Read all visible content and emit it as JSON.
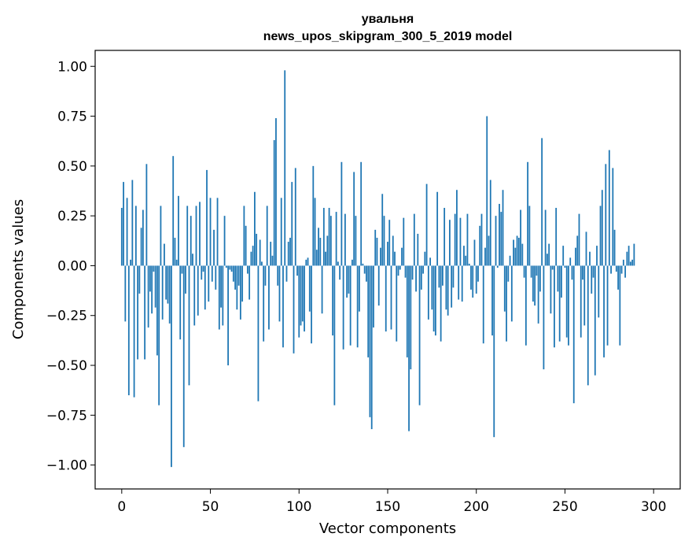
{
  "chart_data": {
    "type": "bar",
    "title_line1": "увальня",
    "title_line2": "news_upos_skipgram_300_5_2019 model",
    "xlabel": "Vector components",
    "ylabel": "Components values",
    "xlim": [
      -15,
      315
    ],
    "ylim": [
      -1.12,
      1.08
    ],
    "xticks": [
      0,
      50,
      100,
      150,
      200,
      250,
      300
    ],
    "xtick_labels": [
      "0",
      "50",
      "100",
      "150",
      "200",
      "250",
      "300"
    ],
    "yticks": [
      1.0,
      0.75,
      0.5,
      0.25,
      0.0,
      -0.25,
      -0.5,
      -0.75,
      -1.0
    ],
    "ytick_labels": [
      "1.00",
      "0.75",
      "0.50",
      "0.25",
      "0.00",
      "−0.25",
      "−0.50",
      "−0.75",
      "−1.00"
    ],
    "bar_color": "#1f77b4",
    "grid": false,
    "legend": "none",
    "x": "0..299 (component index)",
    "values": [
      0.29,
      0.42,
      -0.28,
      0.34,
      -0.65,
      0.03,
      0.43,
      -0.66,
      0.3,
      -0.47,
      -0.14,
      0.19,
      0.28,
      -0.47,
      0.51,
      -0.31,
      -0.13,
      -0.24,
      -0.03,
      -0.21,
      -0.45,
      -0.7,
      0.3,
      -0.27,
      0.11,
      -0.17,
      -0.19,
      -0.29,
      -1.01,
      0.55,
      0.14,
      0.03,
      0.35,
      -0.37,
      -0.04,
      -0.91,
      -0.14,
      0.3,
      -0.6,
      0.25,
      0.06,
      -0.3,
      0.3,
      -0.25,
      0.32,
      -0.07,
      -0.03,
      -0.22,
      0.48,
      -0.18,
      0.34,
      -0.08,
      0.18,
      -0.12,
      0.34,
      -0.32,
      -0.21,
      -0.3,
      0.25,
      -0.01,
      -0.5,
      -0.02,
      -0.03,
      -0.08,
      -0.12,
      -0.22,
      -0.1,
      -0.27,
      -0.18,
      0.3,
      0.2,
      -0.04,
      -0.17,
      0.07,
      0.1,
      0.37,
      0.16,
      -0.68,
      0.13,
      0.02,
      -0.38,
      -0.1,
      0.3,
      -0.32,
      0.12,
      0.05,
      0.63,
      0.74,
      -0.1,
      -0.28,
      0.34,
      -0.41,
      0.98,
      -0.08,
      0.12,
      0.14,
      0.42,
      -0.44,
      0.49,
      -0.05,
      -0.36,
      -0.3,
      -0.28,
      -0.33,
      0.03,
      0.04,
      -0.23,
      -0.39,
      0.5,
      0.34,
      0.08,
      0.19,
      0.14,
      -0.24,
      0.29,
      0.07,
      0.15,
      0.29,
      0.25,
      -0.35,
      -0.7,
      0.27,
      0.02,
      -0.07,
      0.52,
      -0.42,
      0.26,
      -0.16,
      -0.14,
      -0.4,
      0.03,
      0.47,
      0.25,
      -0.41,
      -0.23,
      0.52,
      0.01,
      -0.04,
      -0.08,
      -0.46,
      -0.76,
      -0.82,
      -0.31,
      0.18,
      0.14,
      -0.2,
      0.09,
      0.36,
      0.25,
      -0.33,
      0.12,
      0.23,
      -0.32,
      0.15,
      0.07,
      -0.38,
      -0.05,
      -0.02,
      0.09,
      0.24,
      -0.06,
      -0.46,
      -0.83,
      -0.52,
      -0.07,
      0.26,
      -0.13,
      0.16,
      -0.7,
      -0.12,
      -0.04,
      0.07,
      0.41,
      -0.27,
      0.04,
      -0.22,
      -0.33,
      -0.35,
      0.37,
      -0.11,
      -0.38,
      -0.1,
      0.29,
      -0.22,
      -0.25,
      0.23,
      -0.21,
      -0.11,
      0.26,
      0.38,
      -0.17,
      0.24,
      -0.18,
      0.1,
      0.05,
      0.26,
      0.01,
      -0.12,
      -0.16,
      0.13,
      -0.14,
      -0.08,
      0.2,
      0.26,
      -0.39,
      0.09,
      0.75,
      0.15,
      0.43,
      -0.35,
      -0.86,
      0.25,
      -0.01,
      0.31,
      0.27,
      0.38,
      -0.23,
      -0.38,
      -0.08,
      0.05,
      -0.28,
      0.13,
      0.09,
      0.15,
      0.14,
      0.28,
      0.11,
      -0.06,
      -0.4,
      0.52,
      0.3,
      -0.06,
      -0.18,
      -0.2,
      -0.05,
      -0.29,
      -0.13,
      0.64,
      -0.52,
      0.28,
      0.06,
      0.11,
      -0.24,
      -0.02,
      -0.41,
      0.29,
      -0.13,
      -0.38,
      -0.16,
      0.1,
      -0.01,
      -0.36,
      -0.4,
      0.04,
      -0.07,
      -0.69,
      0.09,
      0.15,
      0.26,
      -0.36,
      -0.07,
      -0.3,
      0.17,
      -0.6,
      0.07,
      -0.14,
      -0.06,
      -0.55,
      0.1,
      -0.26,
      0.3,
      0.38,
      -0.46,
      0.51,
      -0.4,
      0.58,
      -0.04,
      0.49,
      0.18,
      -0.03,
      -0.12,
      -0.4,
      -0.04,
      0.03,
      -0.06,
      0.07,
      0.1,
      0.02,
      0.03,
      0.11
    ]
  }
}
